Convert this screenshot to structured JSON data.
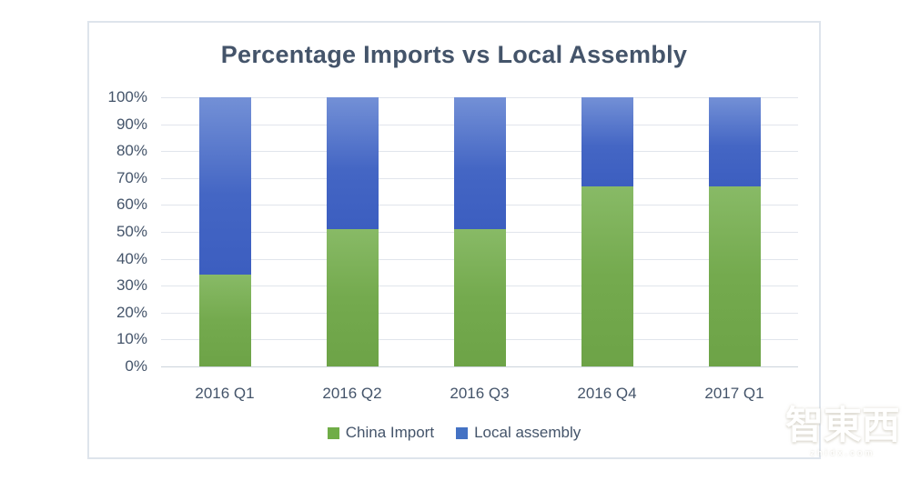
{
  "chart_data": {
    "type": "bar",
    "stacked": true,
    "title": "Percentage Imports vs Local Assembly",
    "categories": [
      "2016 Q1",
      "2016 Q2",
      "2016 Q3",
      "2016 Q4",
      "2017 Q1"
    ],
    "series": [
      {
        "name": "China Import",
        "color": "#70ad47",
        "values": [
          34,
          51,
          51,
          67,
          67
        ]
      },
      {
        "name": "Local assembly",
        "color": "#4472c4",
        "values": [
          66,
          49,
          49,
          33,
          33
        ]
      }
    ],
    "y_ticks": [
      "100%",
      "90%",
      "80%",
      "70%",
      "60%",
      "50%",
      "40%",
      "30%",
      "20%",
      "10%",
      "0%"
    ],
    "ylim": [
      0,
      100
    ],
    "xlabel": "",
    "ylabel": "",
    "grid": true,
    "legend_position": "bottom",
    "title_color": "#44546a",
    "axis_label_color": "#44546a",
    "gridline_color": "#e1e5ec"
  },
  "watermark": {
    "text": "智東西",
    "subtext": "zhidx.com"
  }
}
